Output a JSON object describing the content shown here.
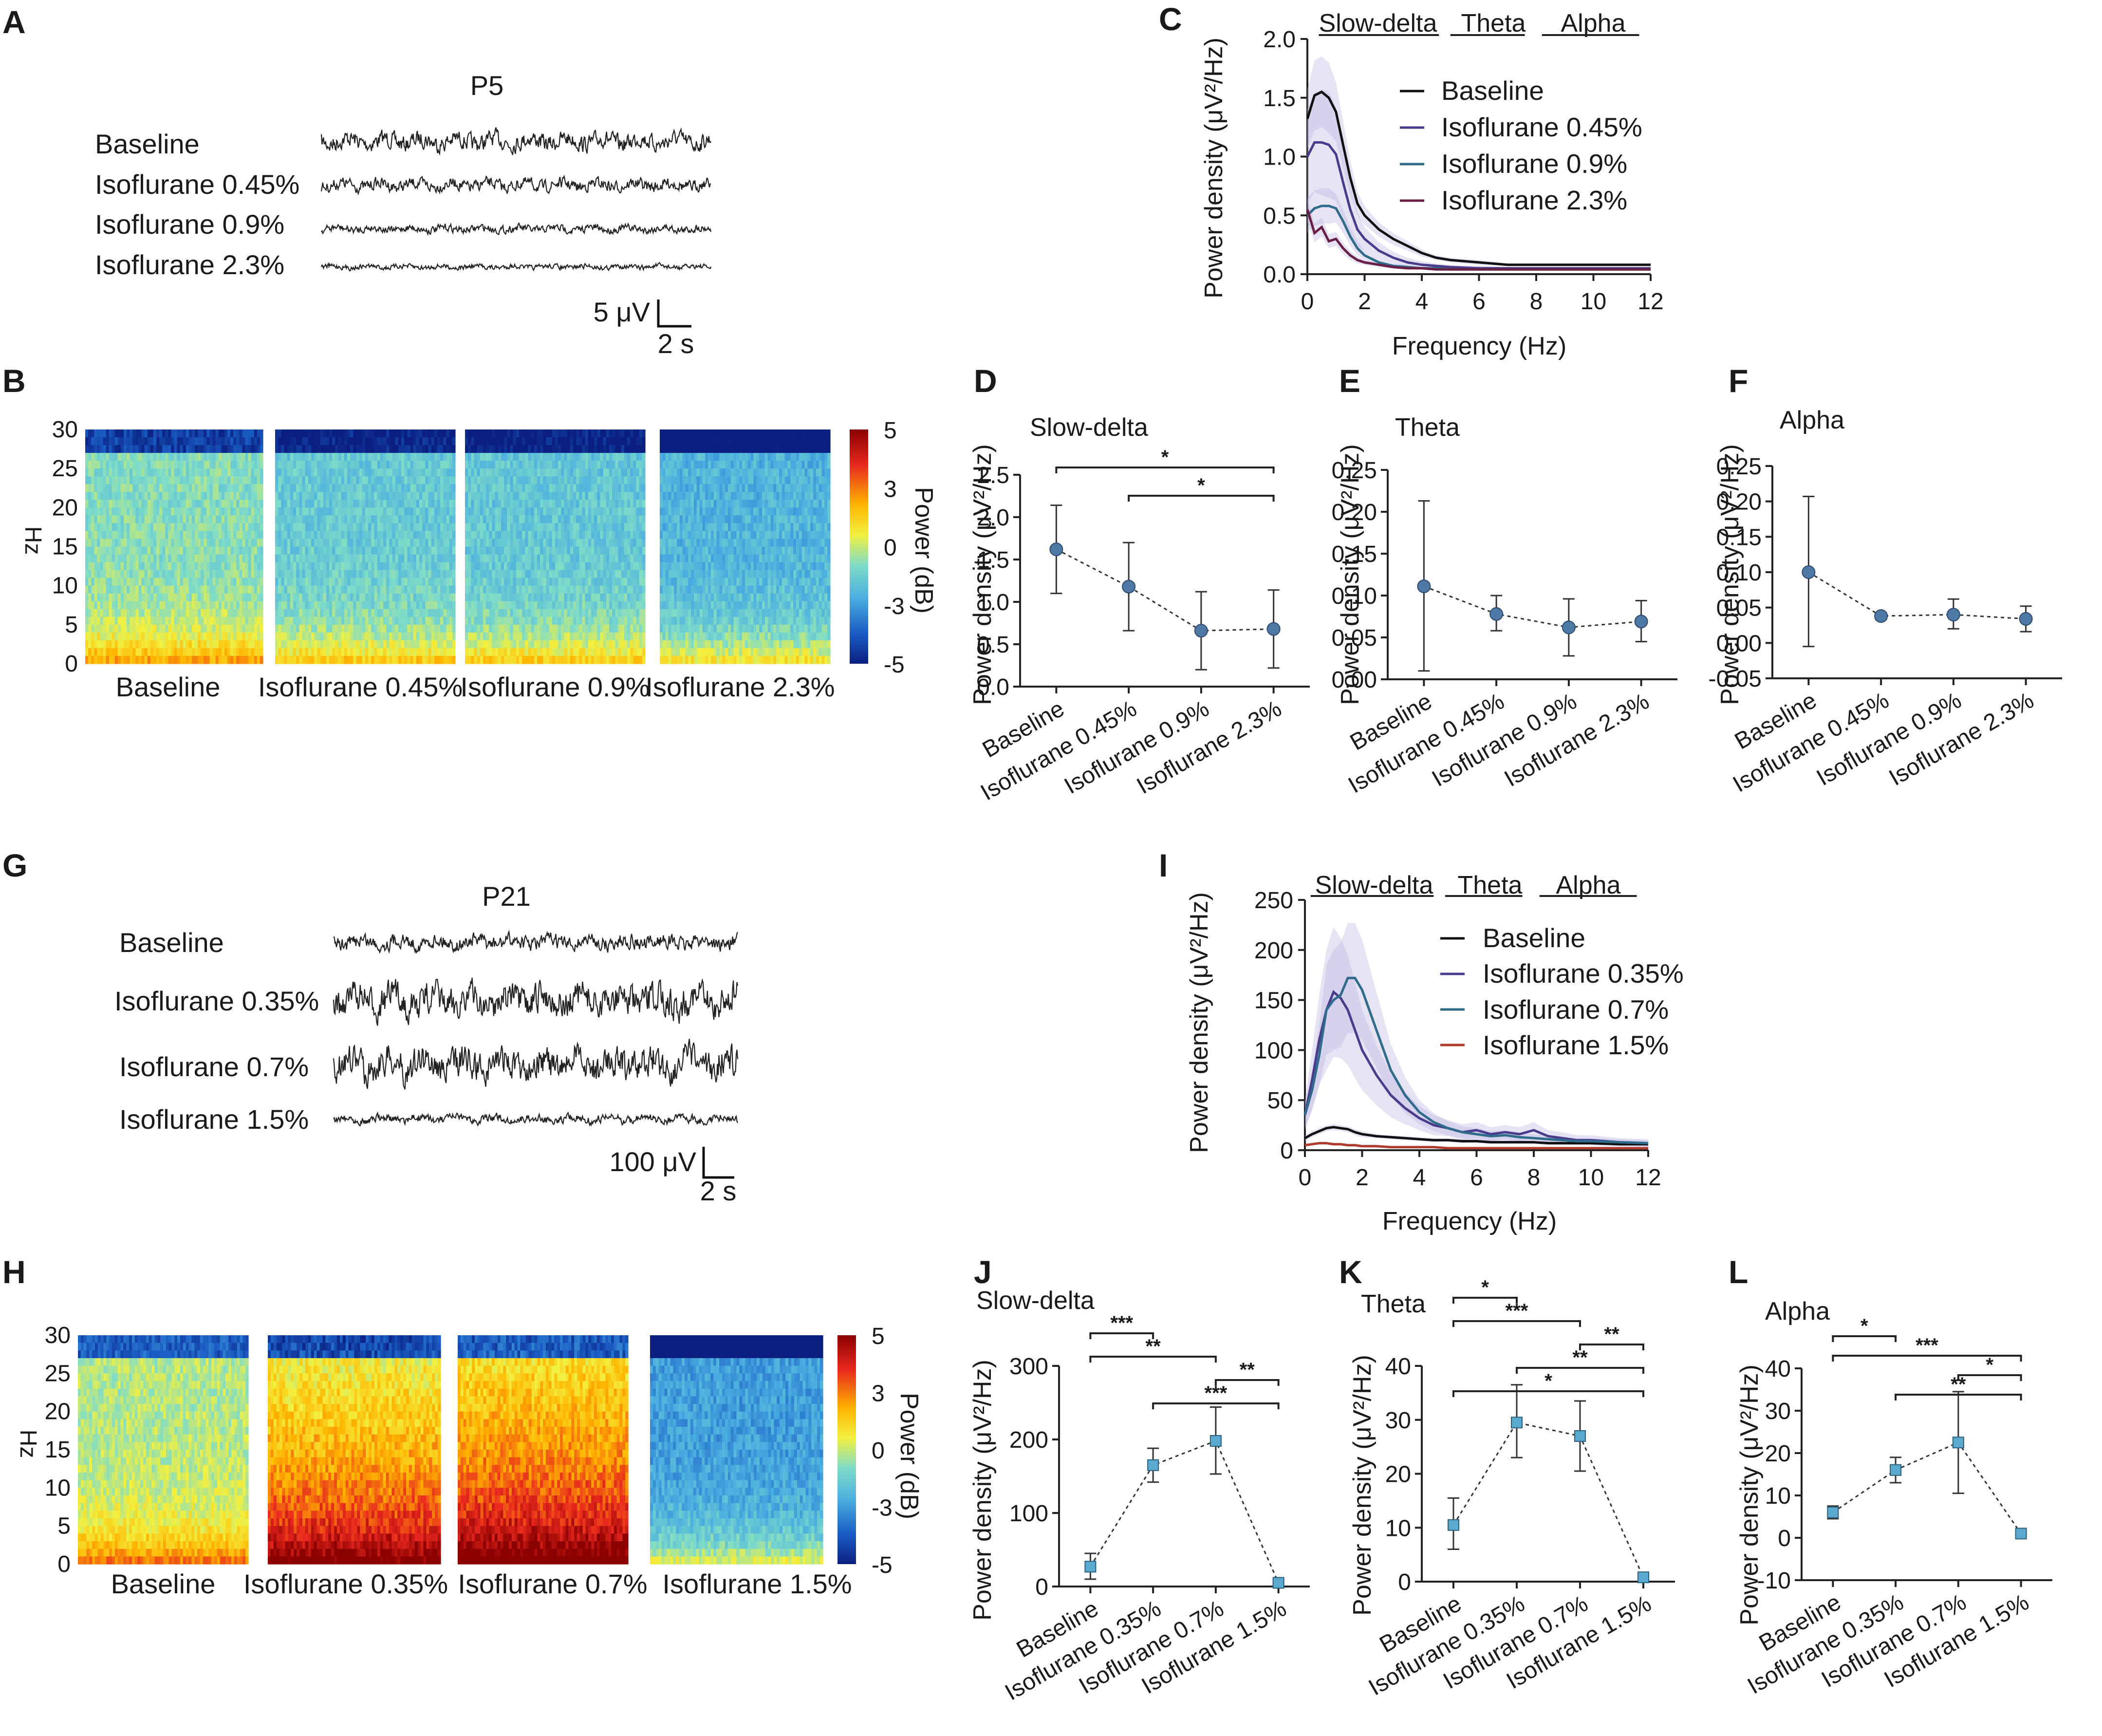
{
  "panels": {
    "A": "A",
    "B": "B",
    "C": "C",
    "D": "D",
    "E": "E",
    "F": "F",
    "G": "G",
    "H": "H",
    "I": "I",
    "J": "J",
    "K": "K",
    "L": "L"
  },
  "trace_sets": [
    {
      "title": "P5",
      "labels": [
        "Baseline",
        "Isoflurane 0.45%",
        "Isoflurane 0.9%",
        "Isoflurane 2.3%"
      ],
      "amplitude_relative": [
        1.0,
        0.7,
        0.45,
        0.3
      ],
      "scale_amplitude": "5 μV",
      "scale_time": "2 s"
    },
    {
      "title": "P21",
      "labels": [
        "Baseline",
        "Isoflurane 0.35%",
        "Isoflurane 0.7%",
        "Isoflurane 1.5%"
      ],
      "amplitude_relative": [
        0.6,
        1.3,
        1.3,
        0.35
      ],
      "scale_amplitude": "100 μV",
      "scale_time": "2 s"
    }
  ],
  "spectrograms": [
    {
      "ylabel": "Hz",
      "y_ticks": [
        "0",
        "5",
        "10",
        "15",
        "20",
        "25",
        "30"
      ],
      "labels": [
        "Baseline",
        "Isoflurane 0.45%",
        "Isoflurane 0.9%",
        "Isoflurane 2.3%"
      ],
      "colorbar_ticks": [
        "5",
        "3",
        "0",
        "-3",
        "-5"
      ],
      "colorbar_label": "Power (dB)",
      "power_level": [
        0.42,
        0.36,
        0.35,
        0.3
      ]
    },
    {
      "ylabel": "Hz",
      "y_ticks": [
        "0",
        "5",
        "10",
        "15",
        "20",
        "25",
        "30"
      ],
      "labels": [
        "Baseline",
        "Isoflurane 0.35%",
        "Isoflurane 0.7%",
        "Isoflurane 1.5%"
      ],
      "colorbar_ticks": [
        "5",
        "3",
        "0",
        "-3",
        "-5"
      ],
      "colorbar_label": "Power (dB)",
      "power_level": [
        0.48,
        0.78,
        0.82,
        0.25
      ]
    }
  ],
  "colors": {
    "baseline": "#111111",
    "c1": "#4a3c8c",
    "c2": "#2f6b8a",
    "c3": "#6a1f45",
    "c3_p21": "#b03a2e",
    "shade": "#b8b2df",
    "marker_round": "#4e79a7",
    "marker_square": "#5aa9cf"
  },
  "chart_data": [
    {
      "id": "C",
      "type": "line",
      "xlabel": "Frequency (Hz)",
      "ylabel": "Power density (μV²/Hz)",
      "xlim": [
        0,
        12
      ],
      "ylim": [
        0,
        2.0
      ],
      "x_ticks": [
        "0",
        "2",
        "4",
        "6",
        "8",
        "10",
        "12"
      ],
      "y_ticks": [
        "0.0",
        "0.5",
        "1.0",
        "1.5",
        "2.0"
      ],
      "bands": [
        "Slow-delta",
        "Theta",
        "Alpha"
      ],
      "x": [
        0,
        0.25,
        0.5,
        0.75,
        1,
        1.25,
        1.5,
        1.75,
        2,
        2.5,
        3,
        3.5,
        4,
        4.5,
        5,
        6,
        7,
        8,
        9,
        10,
        11,
        12
      ],
      "series": [
        {
          "name": "Baseline",
          "values": [
            1.32,
            1.52,
            1.55,
            1.5,
            1.38,
            1.1,
            0.82,
            0.6,
            0.5,
            0.38,
            0.3,
            0.24,
            0.18,
            0.14,
            0.12,
            0.1,
            0.08,
            0.08,
            0.08,
            0.08,
            0.08,
            0.08
          ],
          "band": [
            0.25,
            0.3,
            0.3,
            0.3,
            0.25,
            0.2,
            0.15,
            0.1,
            0.08,
            0.06,
            0.05,
            0.04,
            0.03,
            0.02,
            0.02,
            0.02,
            0.01,
            0.01,
            0.01,
            0.01,
            0.01,
            0.01
          ]
        },
        {
          "name": "Isoflurane 0.45%",
          "values": [
            1.0,
            1.12,
            1.12,
            1.1,
            1.02,
            0.78,
            0.55,
            0.38,
            0.3,
            0.2,
            0.14,
            0.1,
            0.08,
            0.07,
            0.06,
            0.05,
            0.05,
            0.05,
            0.05,
            0.05,
            0.05,
            0.05
          ],
          "band": [
            0.4,
            0.42,
            0.45,
            0.45,
            0.4,
            0.3,
            0.22,
            0.15,
            0.1,
            0.07,
            0.05,
            0.04,
            0.03,
            0.02,
            0.02,
            0.02,
            0.01,
            0.01,
            0.01,
            0.01,
            0.01,
            0.01
          ]
        },
        {
          "name": "Isoflurane 0.9%",
          "values": [
            0.5,
            0.56,
            0.58,
            0.58,
            0.56,
            0.45,
            0.32,
            0.22,
            0.16,
            0.1,
            0.07,
            0.06,
            0.05,
            0.05,
            0.04,
            0.04,
            0.04,
            0.04,
            0.04,
            0.04,
            0.04,
            0.04
          ],
          "band": [
            0.15,
            0.15,
            0.15,
            0.15,
            0.12,
            0.1,
            0.08,
            0.06,
            0.04,
            0.03,
            0.02,
            0.02,
            0.01,
            0.01,
            0.01,
            0.01,
            0.01,
            0.01,
            0.01,
            0.01,
            0.01,
            0.01
          ]
        },
        {
          "name": "Isoflurane 2.3%",
          "values": [
            0.55,
            0.35,
            0.4,
            0.28,
            0.3,
            0.22,
            0.16,
            0.12,
            0.1,
            0.08,
            0.06,
            0.05,
            0.05,
            0.04,
            0.04,
            0.04,
            0.04,
            0.04,
            0.04,
            0.04,
            0.04,
            0.04
          ],
          "band": [
            0.1,
            0.08,
            0.08,
            0.06,
            0.06,
            0.05,
            0.04,
            0.03,
            0.02,
            0.02,
            0.01,
            0.01,
            0.01,
            0.01,
            0.01,
            0.01,
            0.01,
            0.01,
            0.01,
            0.01,
            0.01,
            0.01
          ]
        }
      ]
    },
    {
      "id": "D",
      "type": "scatter",
      "marker": "circle",
      "title": "Slow-delta",
      "ylabel": "Power density (μV²/Hz)",
      "categories": [
        "Baseline",
        "Isoflurane 0.45%",
        "Isoflurane 0.9%",
        "Isoflurane 2.3%"
      ],
      "ylim": [
        0,
        2.5
      ],
      "y_ticks": [
        "0.0",
        "0.5",
        "1.0",
        "1.5",
        "2.0",
        "2.5"
      ],
      "values": [
        1.62,
        1.18,
        0.66,
        0.68
      ],
      "err_low": [
        1.1,
        0.66,
        0.2,
        0.22
      ],
      "err_high": [
        2.14,
        1.7,
        1.12,
        1.14
      ],
      "significance": [
        {
          "from": 0,
          "to": 3,
          "label": "*"
        },
        {
          "from": 1,
          "to": 3,
          "label": "*"
        }
      ]
    },
    {
      "id": "E",
      "type": "scatter",
      "marker": "circle",
      "title": "Theta",
      "ylabel": "Power density (μV²/Hz)",
      "categories": [
        "Baseline",
        "Isoflurane 0.45%",
        "Isoflurane 0.9%",
        "Isoflurane 2.3%"
      ],
      "ylim": [
        0,
        0.25
      ],
      "y_ticks": [
        "0.00",
        "0.05",
        "0.10",
        "0.15",
        "0.20",
        "0.25"
      ],
      "values": [
        0.111,
        0.078,
        0.062,
        0.069
      ],
      "err_low": [
        0.01,
        0.058,
        0.028,
        0.045
      ],
      "err_high": [
        0.213,
        0.1,
        0.096,
        0.094
      ],
      "significance": []
    },
    {
      "id": "F",
      "type": "scatter",
      "marker": "circle",
      "title": "Alpha",
      "ylabel": "Power density (μV²/Hz)",
      "categories": [
        "Baseline",
        "Isoflurane 0.45%",
        "Isoflurane 0.9%",
        "Isoflurane 2.3%"
      ],
      "ylim": [
        -0.05,
        0.25
      ],
      "y_ticks": [
        "-0.05",
        "0.00",
        "0.05",
        "0.10",
        "0.15",
        "0.20",
        "0.25"
      ],
      "values": [
        0.1,
        0.038,
        0.04,
        0.034
      ],
      "err_low": [
        -0.005,
        0.033,
        0.02,
        0.016
      ],
      "err_high": [
        0.207,
        0.043,
        0.062,
        0.052
      ],
      "significance": []
    },
    {
      "id": "I",
      "type": "line",
      "xlabel": "Frequency (Hz)",
      "ylabel": "Power density (μV²/Hz)",
      "xlim": [
        0,
        12
      ],
      "ylim": [
        0,
        250
      ],
      "x_ticks": [
        "0",
        "2",
        "4",
        "6",
        "8",
        "10",
        "12"
      ],
      "y_ticks": [
        "0",
        "50",
        "100",
        "150",
        "200",
        "250"
      ],
      "bands": [
        "Slow-delta",
        "Theta",
        "Alpha"
      ],
      "x": [
        0,
        0.25,
        0.5,
        0.75,
        1,
        1.25,
        1.5,
        1.75,
        2,
        2.5,
        3,
        3.5,
        4,
        4.5,
        5,
        5.5,
        6,
        6.5,
        7,
        7.5,
        8,
        8.5,
        9,
        9.5,
        10,
        11,
        12
      ],
      "series": [
        {
          "name": "Baseline",
          "values": [
            12,
            16,
            19,
            22,
            23,
            22,
            21,
            18,
            16,
            14,
            13,
            12,
            11,
            10,
            10,
            9,
            9,
            8,
            8,
            8,
            8,
            7,
            7,
            7,
            7,
            6,
            6
          ],
          "band": [
            3,
            3,
            3,
            3,
            3,
            3,
            3,
            3,
            3,
            2,
            2,
            2,
            2,
            2,
            2,
            2,
            2,
            2,
            2,
            2,
            2,
            2,
            2,
            2,
            2,
            2,
            2
          ]
        },
        {
          "name": "Isoflurane 0.35%",
          "values": [
            35,
            70,
            110,
            140,
            158,
            152,
            140,
            120,
            100,
            75,
            55,
            42,
            32,
            25,
            22,
            18,
            20,
            16,
            18,
            16,
            20,
            14,
            12,
            10,
            10,
            8,
            7
          ],
          "band": [
            15,
            30,
            45,
            60,
            65,
            60,
            55,
            48,
            40,
            30,
            22,
            16,
            12,
            10,
            8,
            8,
            8,
            7,
            7,
            7,
            8,
            6,
            6,
            5,
            5,
            4,
            4
          ]
        },
        {
          "name": "Isoflurane 0.7%",
          "values": [
            35,
            60,
            95,
            140,
            150,
            155,
            172,
            172,
            160,
            120,
            80,
            55,
            38,
            28,
            22,
            18,
            16,
            14,
            15,
            13,
            12,
            11,
            10,
            9,
            9,
            8,
            7
          ],
          "band": [
            12,
            20,
            30,
            45,
            50,
            52,
            55,
            55,
            50,
            38,
            26,
            18,
            12,
            9,
            7,
            6,
            6,
            5,
            5,
            5,
            4,
            4,
            4,
            3,
            3,
            3,
            3
          ]
        },
        {
          "name": "Isoflurane 1.5%",
          "values": [
            5,
            6,
            7,
            7,
            6,
            6,
            5,
            5,
            4,
            4,
            3,
            3,
            3,
            3,
            2,
            2,
            2,
            2,
            2,
            2,
            2,
            2,
            2,
            2,
            2,
            2,
            2
          ],
          "band": [
            1,
            1,
            1,
            1,
            1,
            1,
            1,
            1,
            1,
            1,
            1,
            1,
            1,
            1,
            1,
            1,
            1,
            1,
            1,
            1,
            1,
            1,
            1,
            1,
            1,
            1,
            1
          ]
        }
      ]
    },
    {
      "id": "J",
      "type": "scatter",
      "marker": "square",
      "title": "Slow-delta",
      "ylabel": "Power density (μV²/Hz)",
      "categories": [
        "Baseline",
        "Isoflurane 0.35%",
        "Isoflurane 0.7%",
        "Isoflurane 1.5%"
      ],
      "ylim": [
        0,
        300
      ],
      "y_ticks": [
        "0",
        "100",
        "200",
        "300"
      ],
      "values": [
        27,
        165,
        198,
        5
      ],
      "err_low": [
        10,
        142,
        153,
        2
      ],
      "err_high": [
        45,
        188,
        244,
        9
      ],
      "significance": [
        {
          "from": 0,
          "to": 1,
          "label": "***"
        },
        {
          "from": 0,
          "to": 2,
          "label": "**"
        },
        {
          "from": 2,
          "to": 3,
          "label": "**"
        },
        {
          "from": 1,
          "to": 3,
          "label": "***"
        }
      ]
    },
    {
      "id": "K",
      "type": "scatter",
      "marker": "square",
      "title": "Theta",
      "ylabel": "Power density (μV²/Hz)",
      "categories": [
        "Baseline",
        "Isoflurane 0.35%",
        "Isoflurane 0.7%",
        "Isoflurane 1.5%"
      ],
      "ylim": [
        0,
        40
      ],
      "y_ticks": [
        "0",
        "10",
        "20",
        "30",
        "40"
      ],
      "values": [
        10.5,
        29.5,
        27,
        0.8
      ],
      "err_low": [
        6,
        23,
        20.5,
        0.3
      ],
      "err_high": [
        15.5,
        36.5,
        33.5,
        1.3
      ],
      "significance": [
        {
          "from": 0,
          "to": 1,
          "label": "*"
        },
        {
          "from": 0,
          "to": 2,
          "label": "***"
        },
        {
          "from": 2,
          "to": 3,
          "label": "**"
        },
        {
          "from": 1,
          "to": 3,
          "label": "**"
        },
        {
          "from": 0,
          "to": 3,
          "label": "*"
        }
      ]
    },
    {
      "id": "L",
      "type": "scatter",
      "marker": "square",
      "title": "Alpha",
      "ylabel": "Power density (μV²/Hz)",
      "categories": [
        "Baseline",
        "Isoflurane 0.35%",
        "Isoflurane 0.7%",
        "Isoflurane 1.5%"
      ],
      "ylim": [
        -10,
        40
      ],
      "y_ticks": [
        "-10",
        "0",
        "10",
        "20",
        "30",
        "40"
      ],
      "values": [
        6,
        16,
        22.5,
        1
      ],
      "err_low": [
        4.5,
        13,
        10.5,
        0.5
      ],
      "err_high": [
        7.5,
        19,
        34.5,
        1.5
      ],
      "significance": [
        {
          "from": 0,
          "to": 1,
          "label": "*"
        },
        {
          "from": 0,
          "to": 3,
          "label": "***"
        },
        {
          "from": 2,
          "to": 3,
          "label": "*"
        },
        {
          "from": 1,
          "to": 3,
          "label": "**"
        }
      ]
    }
  ]
}
